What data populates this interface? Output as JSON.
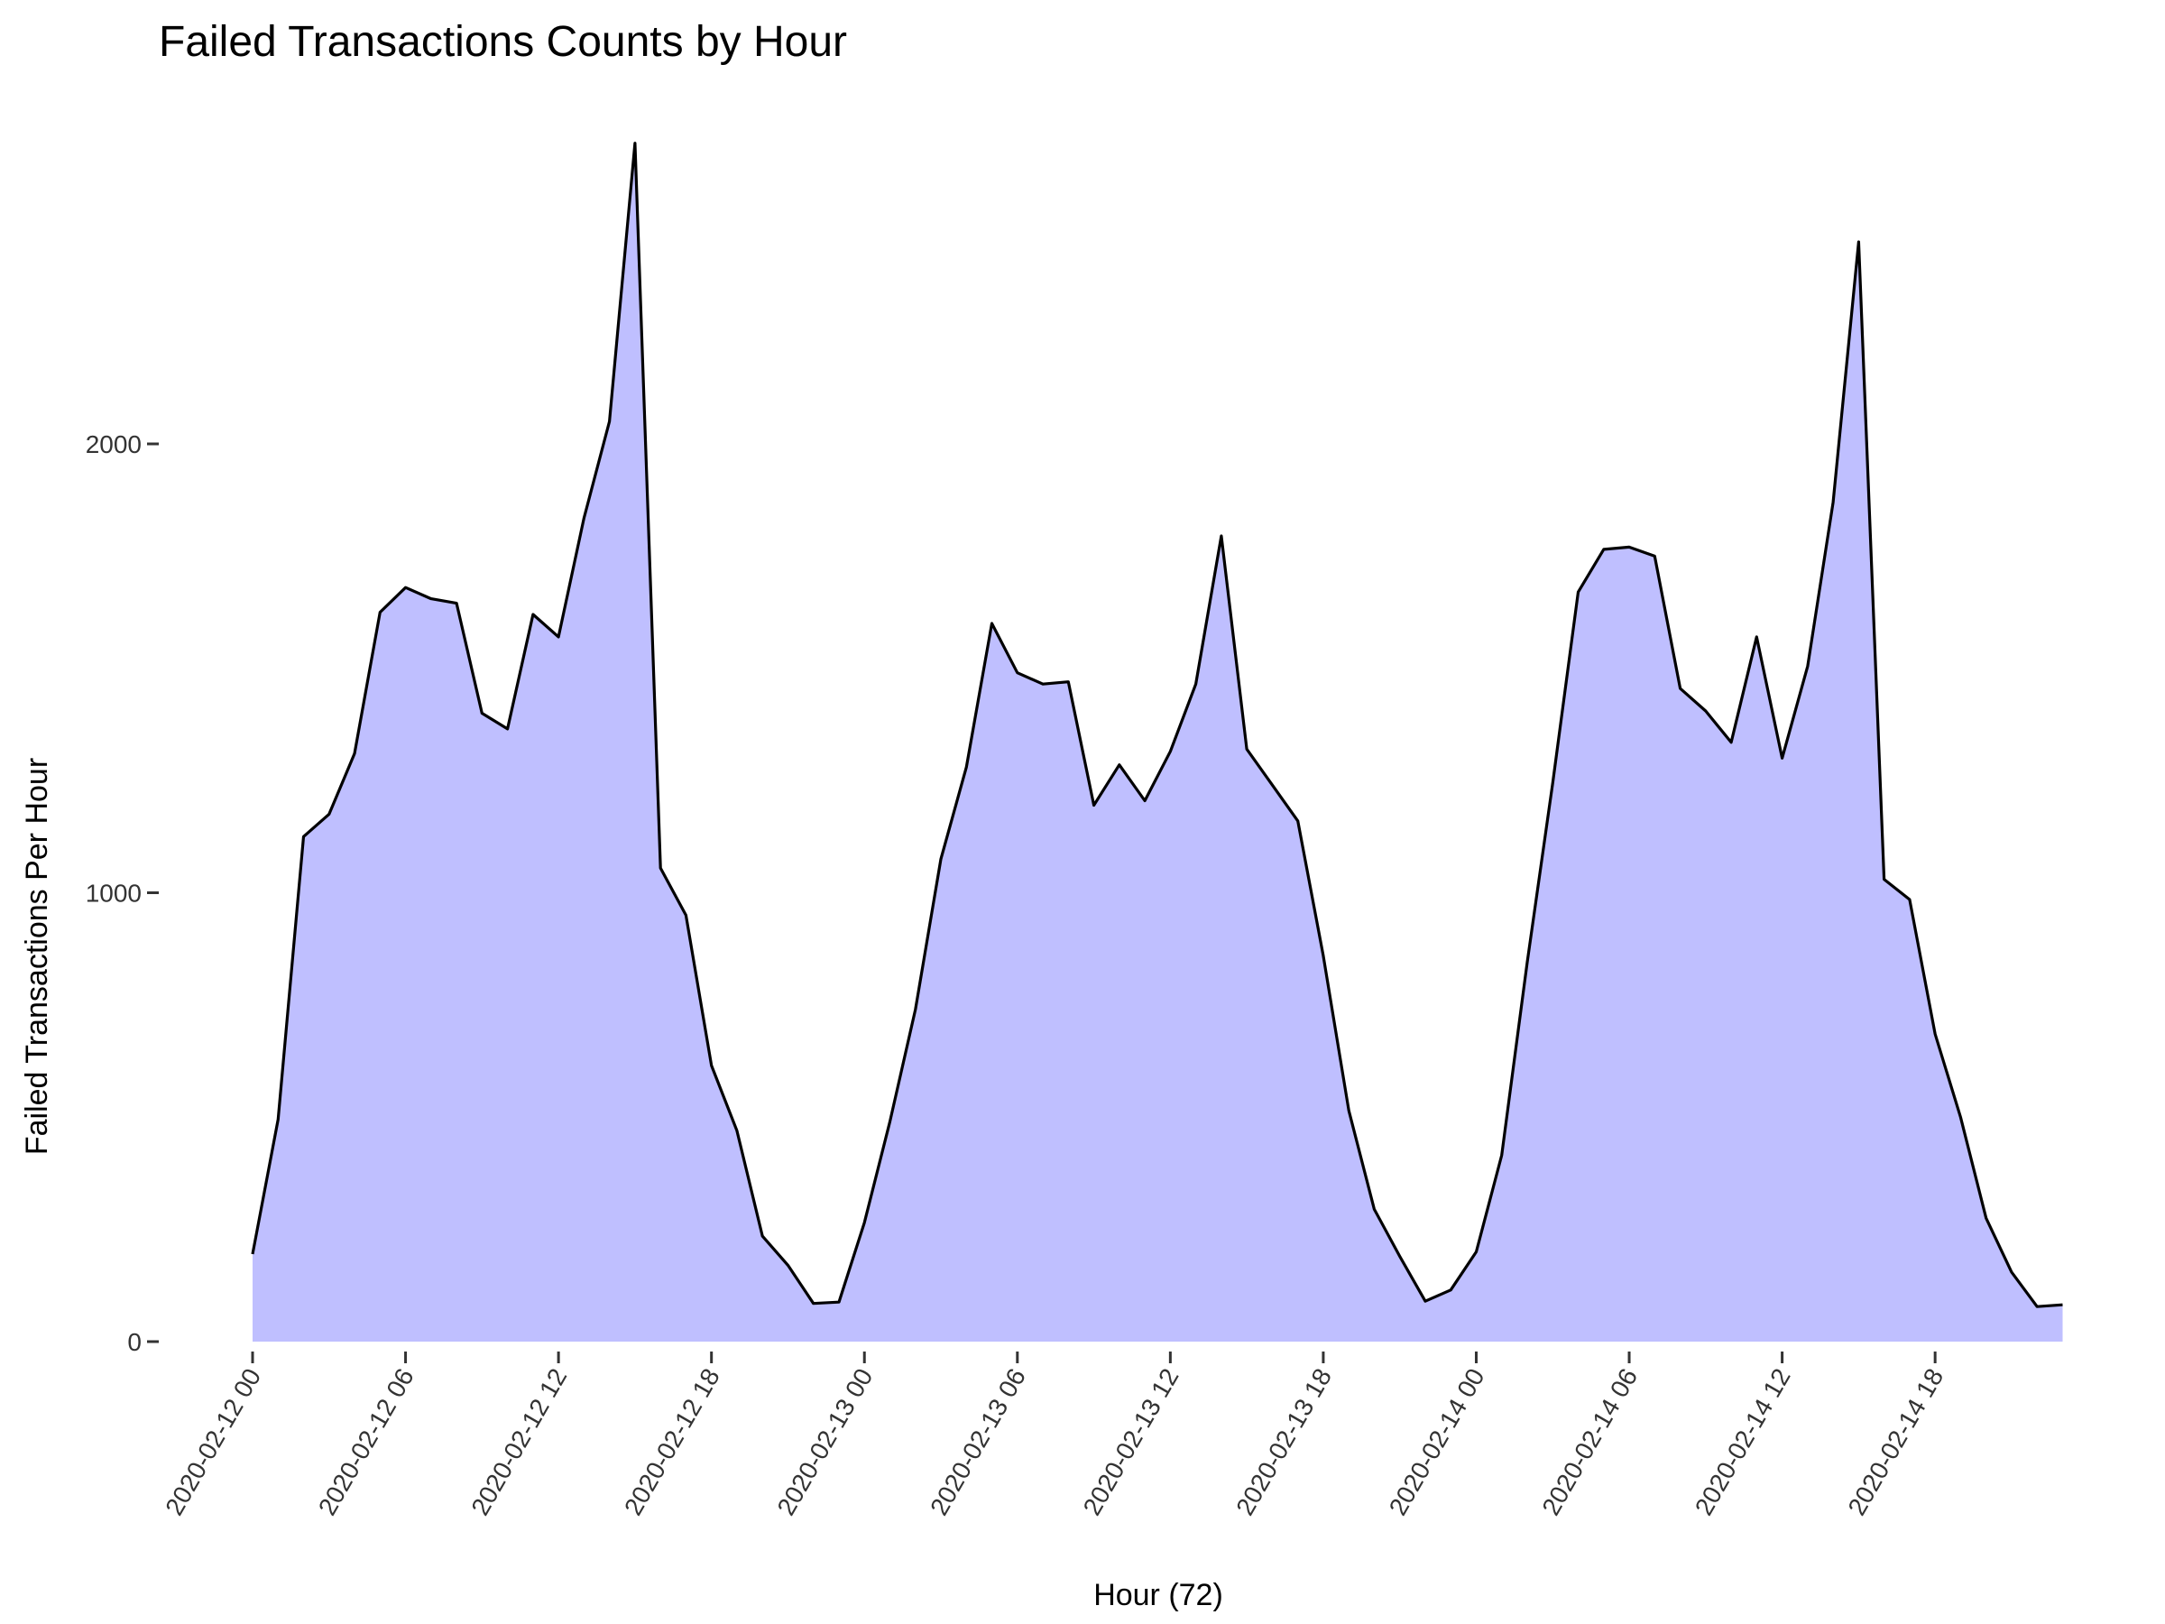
{
  "chart_data": {
    "type": "area",
    "title": "Failed Transactions Counts by Hour",
    "xlabel": "Hour (72)",
    "ylabel": "Failed Transactions Per Hour",
    "ylim": [
      0,
      2700
    ],
    "grid": false,
    "legend": "none",
    "fill_color": "#bfbfff",
    "line_color": "#000000",
    "y_ticks": [
      0,
      1000,
      2000
    ],
    "x_ticks": [
      {
        "hour": 0,
        "label": "2020-02-12 00"
      },
      {
        "hour": 6,
        "label": "2020-02-12 06"
      },
      {
        "hour": 12,
        "label": "2020-02-12 12"
      },
      {
        "hour": 18,
        "label": "2020-02-12 18"
      },
      {
        "hour": 24,
        "label": "2020-02-13 00"
      },
      {
        "hour": 30,
        "label": "2020-02-13 06"
      },
      {
        "hour": 36,
        "label": "2020-02-13 12"
      },
      {
        "hour": 42,
        "label": "2020-02-13 18"
      },
      {
        "hour": 48,
        "label": "2020-02-14 00"
      },
      {
        "hour": 54,
        "label": "2020-02-14 06"
      },
      {
        "hour": 60,
        "label": "2020-02-14 12"
      },
      {
        "hour": 66,
        "label": "2020-02-14 18"
      }
    ],
    "series": [
      {
        "values": [
          195,
          495,
          1125,
          1175,
          1310,
          1625,
          1680,
          1655,
          1645,
          1400,
          1365,
          1620,
          1570,
          1835,
          2050,
          2670,
          1055,
          950,
          615,
          470,
          235,
          170,
          85,
          88,
          265,
          490,
          740,
          1075,
          1280,
          1600,
          1490,
          1465,
          1470,
          1195,
          1285,
          1205,
          1315,
          1465,
          1795,
          1320,
          1240,
          1160,
          860,
          515,
          295,
          190,
          90,
          115,
          200,
          415,
          845,
          1245,
          1670,
          1765,
          1770,
          1750,
          1455,
          1405,
          1335,
          1570,
          1300,
          1505,
          1870,
          2450,
          1030,
          985,
          685,
          500,
          275,
          155,
          78,
          82
        ]
      }
    ]
  }
}
